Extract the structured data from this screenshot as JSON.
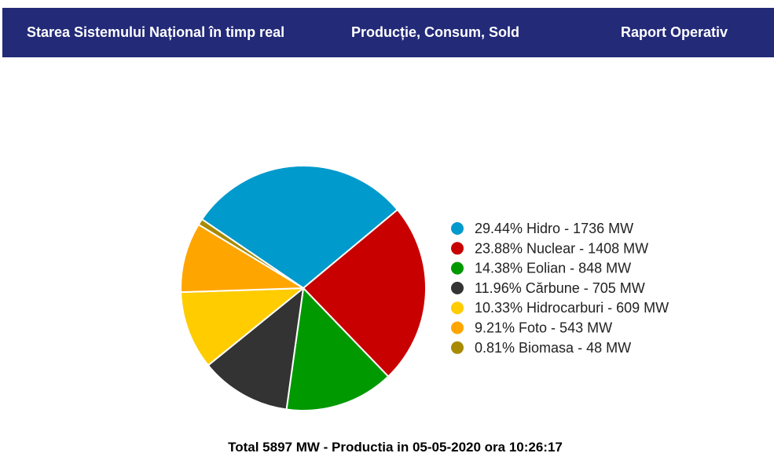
{
  "nav": {
    "items": [
      {
        "label": "Starea Sistemului Național în timp real"
      },
      {
        "label": "Producție, Consum, Sold"
      },
      {
        "label": "Raport Operativ"
      }
    ]
  },
  "chart_data": {
    "type": "pie",
    "legend_position": "right",
    "slices": [
      {
        "label": "29.44% Hidro - 1736 MW",
        "name": "Hidro",
        "percent": 29.44,
        "value": 1736,
        "color": "#009ACD"
      },
      {
        "label": "23.88% Nuclear - 1408 MW",
        "name": "Nuclear",
        "percent": 23.88,
        "value": 1408,
        "color": "#C80000"
      },
      {
        "label": "14.38% Eolian - 848 MW",
        "name": "Eolian",
        "percent": 14.38,
        "value": 848,
        "color": "#009900"
      },
      {
        "label": "11.96% Cărbune - 705 MW",
        "name": "Cărbune",
        "percent": 11.96,
        "value": 705,
        "color": "#333333"
      },
      {
        "label": "10.33% Hidrocarburi - 609 MW",
        "name": "Hidrocarburi",
        "percent": 10.33,
        "value": 609,
        "color": "#FFCC00"
      },
      {
        "label": "9.21% Foto - 543 MW",
        "name": "Foto",
        "percent": 9.21,
        "value": 543,
        "color": "#FFA500"
      },
      {
        "label": "0.81% Biomasa - 48 MW",
        "name": "Biomasa",
        "percent": 0.81,
        "value": 48,
        "color": "#A88A00"
      }
    ]
  },
  "footer": {
    "text": "Total 5897 MW - Productia in 05-05-2020 ora 10:26:17"
  }
}
